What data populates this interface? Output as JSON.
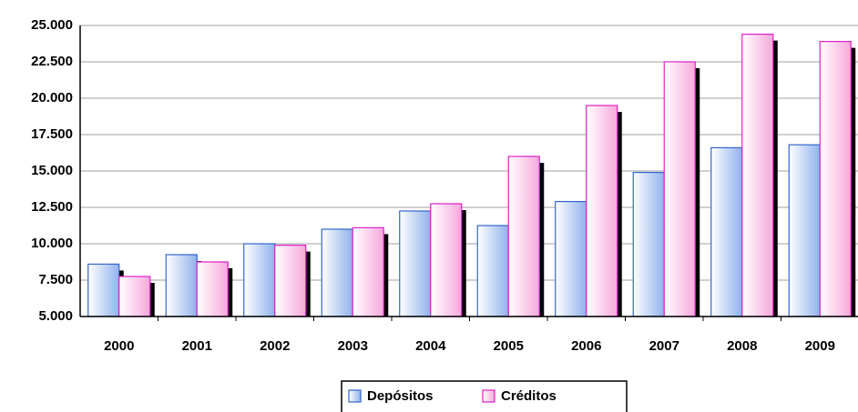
{
  "chart_data": {
    "type": "bar",
    "categories": [
      "2000",
      "2001",
      "2002",
      "2003",
      "2004",
      "2005",
      "2006",
      "2007",
      "2008",
      "2009"
    ],
    "series": [
      {
        "name": "Depósitos",
        "color": "#8fb2ec",
        "border": "#3366cc",
        "values": [
          8600,
          9250,
          10000,
          11000,
          12250,
          11250,
          12900,
          14900,
          16600,
          16800
        ]
      },
      {
        "name": "Créditos",
        "color": "#f7a8dc",
        "border": "#e020c8",
        "values": [
          7750,
          8750,
          9900,
          11100,
          12750,
          16000,
          19500,
          22500,
          24400,
          23900
        ]
      }
    ],
    "ylim": [
      5000,
      25000
    ],
    "yticks": [
      {
        "value": 5000,
        "label": "5.000"
      },
      {
        "value": 7500,
        "label": "7.500"
      },
      {
        "value": 10000,
        "label": "10.000"
      },
      {
        "value": 12500,
        "label": "12.500"
      },
      {
        "value": 15000,
        "label": "15.000"
      },
      {
        "value": 17500,
        "label": "17.500"
      },
      {
        "value": 20000,
        "label": "20.000"
      },
      {
        "value": 22500,
        "label": "22.500"
      },
      {
        "value": 25000,
        "label": "25.000"
      }
    ],
    "grid": true,
    "legend": "bottom"
  }
}
